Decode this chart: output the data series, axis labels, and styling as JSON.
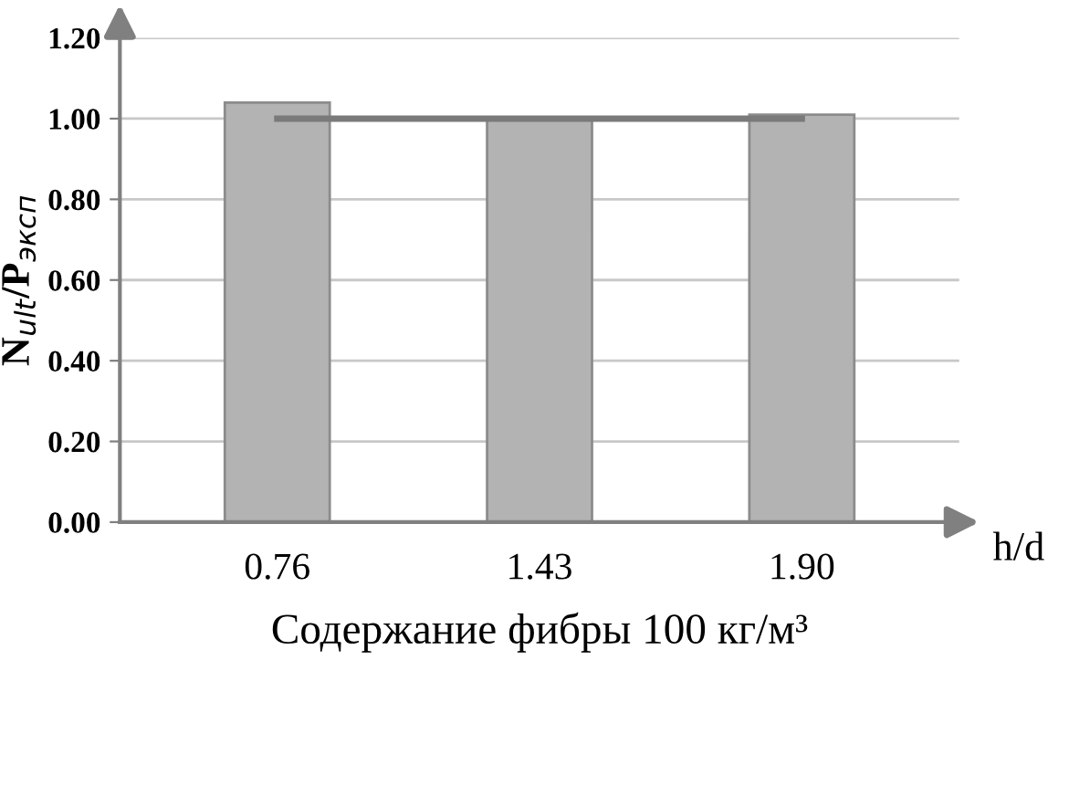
{
  "chart_data": {
    "type": "bar",
    "categories": [
      "0.76",
      "1.43",
      "1.90"
    ],
    "series": [
      {
        "color": "#b3b3b3",
        "values": [
          1.04,
          1.0,
          1.01
        ]
      },
      {
        "type": "line",
        "color": "#7a7a7a",
        "values": [
          1.0,
          1.0,
          1.0
        ]
      }
    ],
    "ylabel": "N$_{ult}$/P$_{эксп}$",
    "xlabel": "Содержание фибры 100 кг/м³",
    "annotations": [
      "h/d"
    ],
    "ylim": [
      0,
      1.2
    ],
    "yticks": [
      {
        "value": 0,
        "label": "0.00"
      },
      {
        "value": 0.2,
        "label": "0.20"
      },
      {
        "value": 0.4,
        "label": "0.40"
      },
      {
        "value": 0.6,
        "label": "0.60"
      },
      {
        "value": 0.8,
        "label": "0.80"
      },
      {
        "value": 1.0,
        "label": "1.00"
      },
      {
        "value": 1.2,
        "label": "1.20"
      }
    ],
    "grid": "y",
    "legend": false
  }
}
